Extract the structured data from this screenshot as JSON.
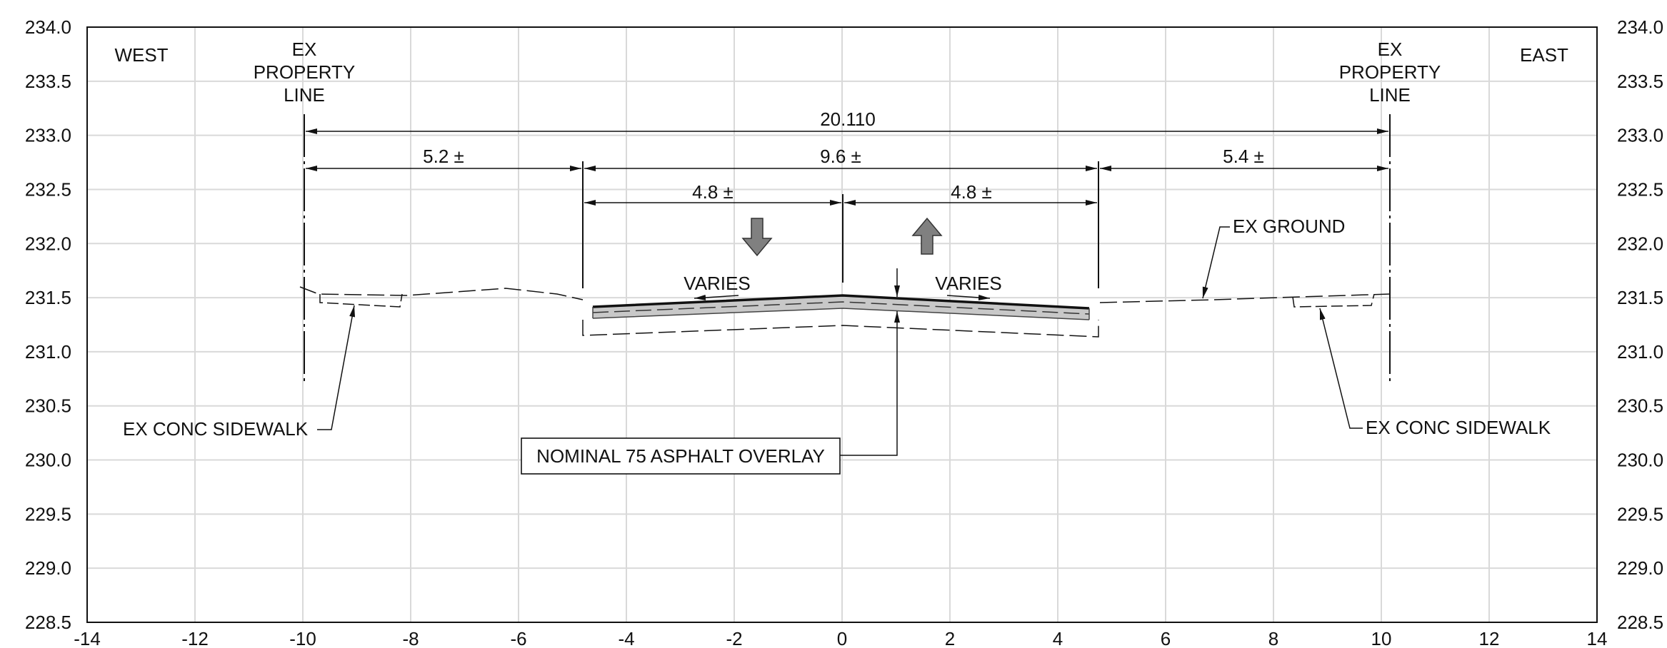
{
  "chart_data": {
    "type": "cross-section",
    "xlim": [
      -14,
      14
    ],
    "ylim": [
      228.5,
      234.0
    ],
    "x_ticks": [
      "-14",
      "-12",
      "-10",
      "-8",
      "-6",
      "-4",
      "-2",
      "0",
      "2",
      "4",
      "6",
      "8",
      "10",
      "12",
      "14"
    ],
    "y_ticks": [
      "228.5",
      "229.0",
      "229.5",
      "230.0",
      "230.5",
      "231.0",
      "231.5",
      "232.0",
      "232.5",
      "233.0",
      "233.5",
      "234.0"
    ],
    "grid": true,
    "side_labels": {
      "west": "WEST",
      "east": "EAST"
    },
    "property_line_label": [
      "EX",
      "PROPERTY",
      "LINE"
    ],
    "property_lines_x": [
      -10,
      10.15
    ],
    "dimensions": {
      "total": "20.110",
      "west_blvd": "5.2 ±",
      "road": "9.6 ±",
      "east_blvd": "5.4 ±",
      "half_west": "4.8 ±",
      "half_east": "4.8 ±"
    },
    "varies_labels": [
      "VARIES",
      "VARIES"
    ],
    "callouts": {
      "ex_ground": "EX GROUND",
      "sidewalk_west": "EX CONC SIDEWALK",
      "sidewalk_east": "EX CONC SIDEWALK",
      "overlay": "NOMINAL 75 ASPHALT OVERLAY"
    },
    "ground_profile_west": [
      [
        -10.1,
        231.58
      ],
      [
        -8.0,
        231.52
      ],
      [
        -6.3,
        231.58
      ],
      [
        -4.8,
        231.47
      ]
    ],
    "ground_profile_east": [
      [
        4.8,
        231.44
      ],
      [
        8.0,
        231.51
      ],
      [
        10.1,
        231.54
      ]
    ],
    "road_surface": [
      [
        -4.7,
        231.42
      ],
      [
        0,
        231.52
      ],
      [
        4.6,
        231.41
      ]
    ],
    "pavement_bottom": [
      [
        -4.9,
        231.15
      ],
      [
        0,
        231.23
      ],
      [
        4.8,
        231.13
      ]
    ]
  }
}
